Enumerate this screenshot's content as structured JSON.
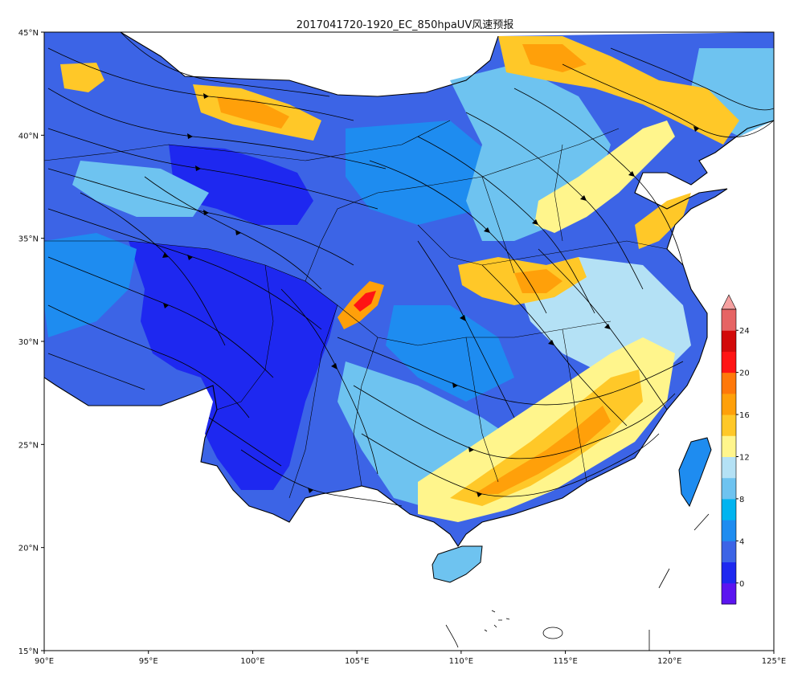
{
  "title": "2017041720-1920_EC_850hpaUV风速预报",
  "axes": {
    "x_ticks": [
      "90°E",
      "95°E",
      "100°E",
      "105°E",
      "110°E",
      "115°E",
      "120°E",
      "125°E"
    ],
    "y_ticks": [
      "45°N",
      "40°N",
      "35°N",
      "30°N",
      "25°N",
      "20°N",
      "15°N"
    ],
    "lon_range": [
      90,
      125
    ],
    "lat_range": [
      15,
      45
    ]
  },
  "colorbar": {
    "labels": [
      "24",
      "20",
      "16",
      "12",
      "8",
      "4",
      "0"
    ],
    "levels": [
      -2,
      0,
      2,
      4,
      6,
      8,
      10,
      12,
      14,
      16,
      18,
      20,
      22,
      24,
      26
    ],
    "colors": [
      "#5b14f0",
      "#1e28f0",
      "#3c64e6",
      "#1e8cf0",
      "#00b4f0",
      "#6ec3f0",
      "#b4e1f5",
      "#fff58c",
      "#ffc828",
      "#ffa00a",
      "#ff780a",
      "#ff1414",
      "#d20a0a",
      "#e66464"
    ],
    "extend_color": "#f5a0a0"
  },
  "map_colors": {
    "land_low": "#3c64e6",
    "deep": "#1e28f0",
    "mid": "#1e8cf0",
    "light": "#6ec3f0",
    "pale": "#b4e1f5",
    "yellow": "#fff58c",
    "orange": "#ffc828",
    "dark_orange": "#ffa00a",
    "red": "#ff1414"
  }
}
